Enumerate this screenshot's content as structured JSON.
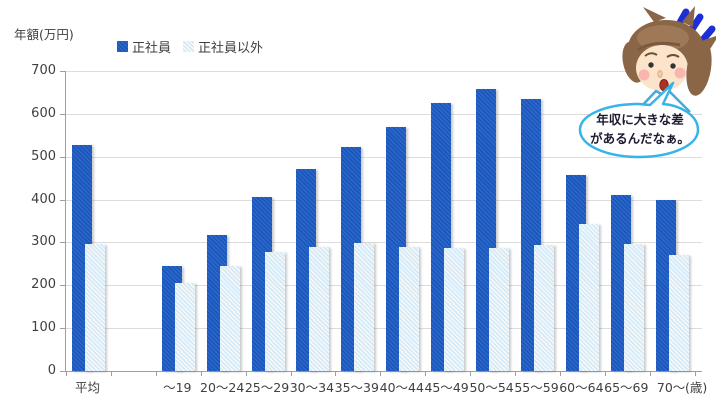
{
  "chart_data": {
    "type": "bar",
    "title": "",
    "ylabel": "年額(万円)",
    "x_unit_label": "(歳)",
    "ylim": [
      0,
      700
    ],
    "ytick_step": 100,
    "grid": true,
    "legend_position": "top-left",
    "categories": [
      "平均",
      "",
      "～19",
      "20～24",
      "25～29",
      "30～34",
      "35～39",
      "40～44",
      "45～49",
      "50～54",
      "55～59",
      "60～64",
      "65～69",
      "70～"
    ],
    "series": [
      {
        "name": "正社員",
        "color": "#1f5fc8",
        "values": [
          527,
          null,
          245,
          318,
          405,
          472,
          522,
          570,
          625,
          657,
          634,
          458,
          410,
          398
        ]
      },
      {
        "name": "正社員以外",
        "color": "#d7eaf5",
        "values": [
          297,
          null,
          205,
          246,
          278,
          290,
          298,
          290,
          287,
          288,
          294,
          343,
          296,
          270
        ]
      }
    ]
  },
  "annotation": {
    "line1": "年収に大きな差",
    "line2": "があるんだなぁ。"
  },
  "colors": {
    "grid": "#dcdcdc",
    "axis": "#9f9f9f",
    "text": "#3f3f3f",
    "bubble_border": "#36b4e8",
    "exclamation": "#1c2fd6"
  }
}
